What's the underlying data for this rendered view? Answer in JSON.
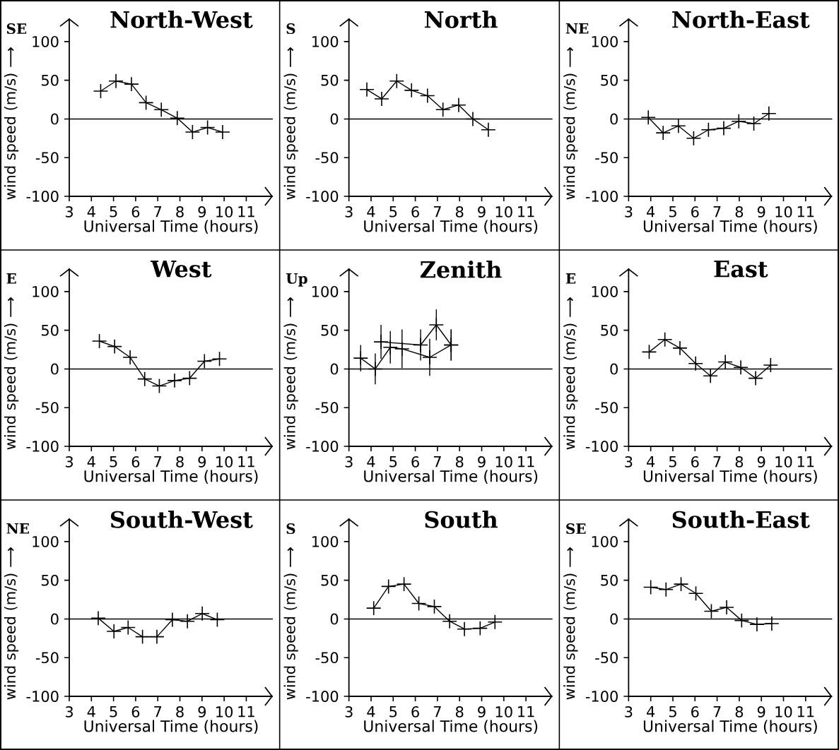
{
  "chart_data": [
    {
      "type": "line",
      "title": "North-West",
      "annotations": [
        "SE"
      ],
      "xlabel": "Universal Time (hours)",
      "ylabel": "wind speed (m/s) ⟶",
      "marker": "cross",
      "xlim": [
        3,
        12.2
      ],
      "ylim": [
        -100,
        130
      ],
      "xticks": [
        3,
        4,
        5,
        6,
        7,
        8,
        9,
        10,
        11
      ],
      "yticks": [
        -100,
        -50,
        0,
        50,
        100
      ],
      "ref_lines": [
        {
          "axis": "y",
          "value": 0
        }
      ],
      "series": [
        {
          "color": "#000000",
          "x": [
            4.42,
            5.11,
            5.81,
            6.47,
            7.16,
            7.88,
            8.57,
            9.25,
            9.93
          ],
          "values": [
            36,
            49,
            45,
            21,
            12,
            1,
            -17,
            -11,
            -17
          ]
        }
      ]
    },
    {
      "type": "line",
      "title": "North",
      "annotations": [
        "S"
      ],
      "xlabel": "Universal Time (hours)",
      "ylabel": "wind speed (m/s) ⟶",
      "marker": "cross",
      "xlim": [
        3,
        12.2
      ],
      "ylim": [
        -100,
        130
      ],
      "xticks": [
        3,
        4,
        5,
        6,
        7,
        8,
        9,
        10,
        11
      ],
      "yticks": [
        -100,
        -50,
        0,
        50,
        100
      ],
      "ref_lines": [
        {
          "axis": "y",
          "value": 0
        }
      ],
      "series": [
        {
          "color": "#000000",
          "x": [
            3.81,
            4.48,
            5.16,
            5.83,
            6.55,
            7.25,
            7.96,
            8.6,
            9.3
          ],
          "values": [
            38,
            26,
            49,
            37,
            30,
            12,
            18,
            0,
            -14
          ]
        }
      ]
    },
    {
      "type": "line",
      "title": "North-East",
      "annotations": [
        "NE"
      ],
      "xlabel": "Universal Time (hours)",
      "ylabel": "wind speed (m/s) ⟶",
      "marker": "cross",
      "xlim": [
        3,
        12.2
      ],
      "ylim": [
        -100,
        130
      ],
      "xticks": [
        3,
        4,
        5,
        6,
        7,
        8,
        9,
        10,
        11
      ],
      "yticks": [
        -100,
        -50,
        0,
        50,
        100
      ],
      "ref_lines": [
        {
          "axis": "y",
          "value": 0
        }
      ],
      "series": [
        {
          "color": "#000000",
          "x": [
            3.89,
            4.56,
            5.25,
            5.94,
            6.61,
            7.3,
            7.98,
            8.66,
            9.34
          ],
          "values": [
            2,
            -18,
            -9,
            -25,
            -14,
            -12,
            -3,
            -6,
            7
          ]
        }
      ]
    },
    {
      "type": "line",
      "title": "West",
      "annotations": [
        "E"
      ],
      "xlabel": "Universal Time (hours)",
      "ylabel": "wind speed (m/s) ⟶",
      "marker": "cross",
      "xlim": [
        3,
        12.2
      ],
      "ylim": [
        -100,
        130
      ],
      "xticks": [
        3,
        4,
        5,
        6,
        7,
        8,
        9,
        10,
        11
      ],
      "yticks": [
        -100,
        -50,
        0,
        50,
        100
      ],
      "ref_lines": [
        {
          "axis": "y",
          "value": 0
        }
      ],
      "series": [
        {
          "color": "#000000",
          "x": [
            4.36,
            5.05,
            5.75,
            6.41,
            7.07,
            7.76,
            8.44,
            9.11,
            9.79
          ],
          "values": [
            36,
            29,
            15,
            -13,
            -22,
            -15,
            -12,
            10,
            13
          ]
        }
      ]
    },
    {
      "type": "line",
      "title": "Zenith",
      "annotations": [
        "Up"
      ],
      "xlabel": "Universal Time (hours)",
      "ylabel": "wind speed (m/s) ⟶",
      "marker": "cross",
      "xlim": [
        3,
        12.2
      ],
      "ylim": [
        -100,
        130
      ],
      "xticks": [
        3,
        4,
        5,
        6,
        7,
        8,
        9,
        10,
        11
      ],
      "yticks": [
        -100,
        -50,
        0,
        50,
        100
      ],
      "ref_lines": [
        {
          "axis": "y",
          "value": 0
        }
      ],
      "series": [
        {
          "color": "#000000",
          "x": [
            3.53,
            4.19,
            4.87,
            5.4,
            6.65,
            7.62
          ],
          "values": [
            14,
            0,
            28,
            26,
            15,
            31
          ],
          "errors": [
            17,
            20,
            21,
            25,
            24,
            20
          ]
        },
        {
          "color": "#000000",
          "x": [
            4.45,
            6.24,
            6.95,
            7.62
          ],
          "values": [
            35,
            31,
            57,
            31
          ],
          "errors": [
            22,
            20,
            20,
            20
          ]
        }
      ]
    },
    {
      "type": "line",
      "title": "East",
      "annotations": [
        "E"
      ],
      "xlabel": "Universal Time (hours)",
      "ylabel": "wind speed (m/s) ⟶",
      "marker": "cross",
      "xlim": [
        3,
        12.2
      ],
      "ylim": [
        -100,
        130
      ],
      "xticks": [
        3,
        4,
        5,
        6,
        7,
        8,
        9,
        10,
        11
      ],
      "yticks": [
        -100,
        -50,
        0,
        50,
        100
      ],
      "ref_lines": [
        {
          "axis": "y",
          "value": 0
        }
      ],
      "series": [
        {
          "color": "#000000",
          "x": [
            3.93,
            4.64,
            5.32,
            6.03,
            6.7,
            7.37,
            8.07,
            8.74,
            9.42
          ],
          "values": [
            22,
            38,
            27,
            7,
            -9,
            9,
            2,
            -12,
            5
          ]
        }
      ]
    },
    {
      "type": "line",
      "title": "South-West",
      "annotations": [
        "NE"
      ],
      "xlabel": "Universal Time (hours)",
      "ylabel": "wind speed (m/s) ⟶",
      "marker": "cross",
      "xlim": [
        3,
        12.2
      ],
      "ylim": [
        -100,
        130
      ],
      "xticks": [
        3,
        4,
        5,
        6,
        7,
        8,
        9,
        10,
        11
      ],
      "yticks": [
        -100,
        -50,
        0,
        50,
        100
      ],
      "ref_lines": [
        {
          "axis": "y",
          "value": 0
        }
      ],
      "series": [
        {
          "color": "#000000",
          "x": [
            4.31,
            5.02,
            5.66,
            6.31,
            6.96,
            7.66,
            8.34,
            9.01,
            9.69
          ],
          "values": [
            1,
            -16,
            -11,
            -23,
            -23,
            -1,
            -3,
            7,
            -1
          ]
        }
      ]
    },
    {
      "type": "line",
      "title": "South",
      "annotations": [
        "S"
      ],
      "xlabel": "Universal Time (hours)",
      "ylabel": "wind speed (m/s) ⟶",
      "marker": "cross",
      "xlim": [
        3,
        12.2
      ],
      "ylim": [
        -100,
        130
      ],
      "xticks": [
        3,
        4,
        5,
        6,
        7,
        8,
        9,
        10,
        11
      ],
      "yticks": [
        -100,
        -50,
        0,
        50,
        100
      ],
      "ref_lines": [
        {
          "axis": "y",
          "value": 0
        }
      ],
      "series": [
        {
          "color": "#000000",
          "x": [
            4.12,
            4.79,
            5.49,
            6.16,
            6.86,
            7.55,
            8.22,
            8.93,
            9.6
          ],
          "values": [
            14,
            42,
            45,
            20,
            16,
            -3,
            -13,
            -12,
            -4
          ]
        }
      ]
    },
    {
      "type": "line",
      "title": "South-East",
      "annotations": [
        "SE"
      ],
      "xlabel": "Universal Time (hours)",
      "ylabel": "wind speed (m/s) ⟶",
      "marker": "cross",
      "xlim": [
        3,
        12.2
      ],
      "ylim": [
        -100,
        130
      ],
      "xticks": [
        3,
        4,
        5,
        6,
        7,
        8,
        9,
        10,
        11
      ],
      "yticks": [
        -100,
        -50,
        0,
        50,
        100
      ],
      "ref_lines": [
        {
          "axis": "y",
          "value": 0
        }
      ],
      "series": [
        {
          "color": "#000000",
          "x": [
            4.0,
            4.69,
            5.37,
            6.04,
            6.74,
            7.43,
            8.11,
            8.8,
            9.47
          ],
          "values": [
            41,
            38,
            45,
            33,
            10,
            15,
            -2,
            -7,
            -6
          ]
        }
      ]
    }
  ]
}
